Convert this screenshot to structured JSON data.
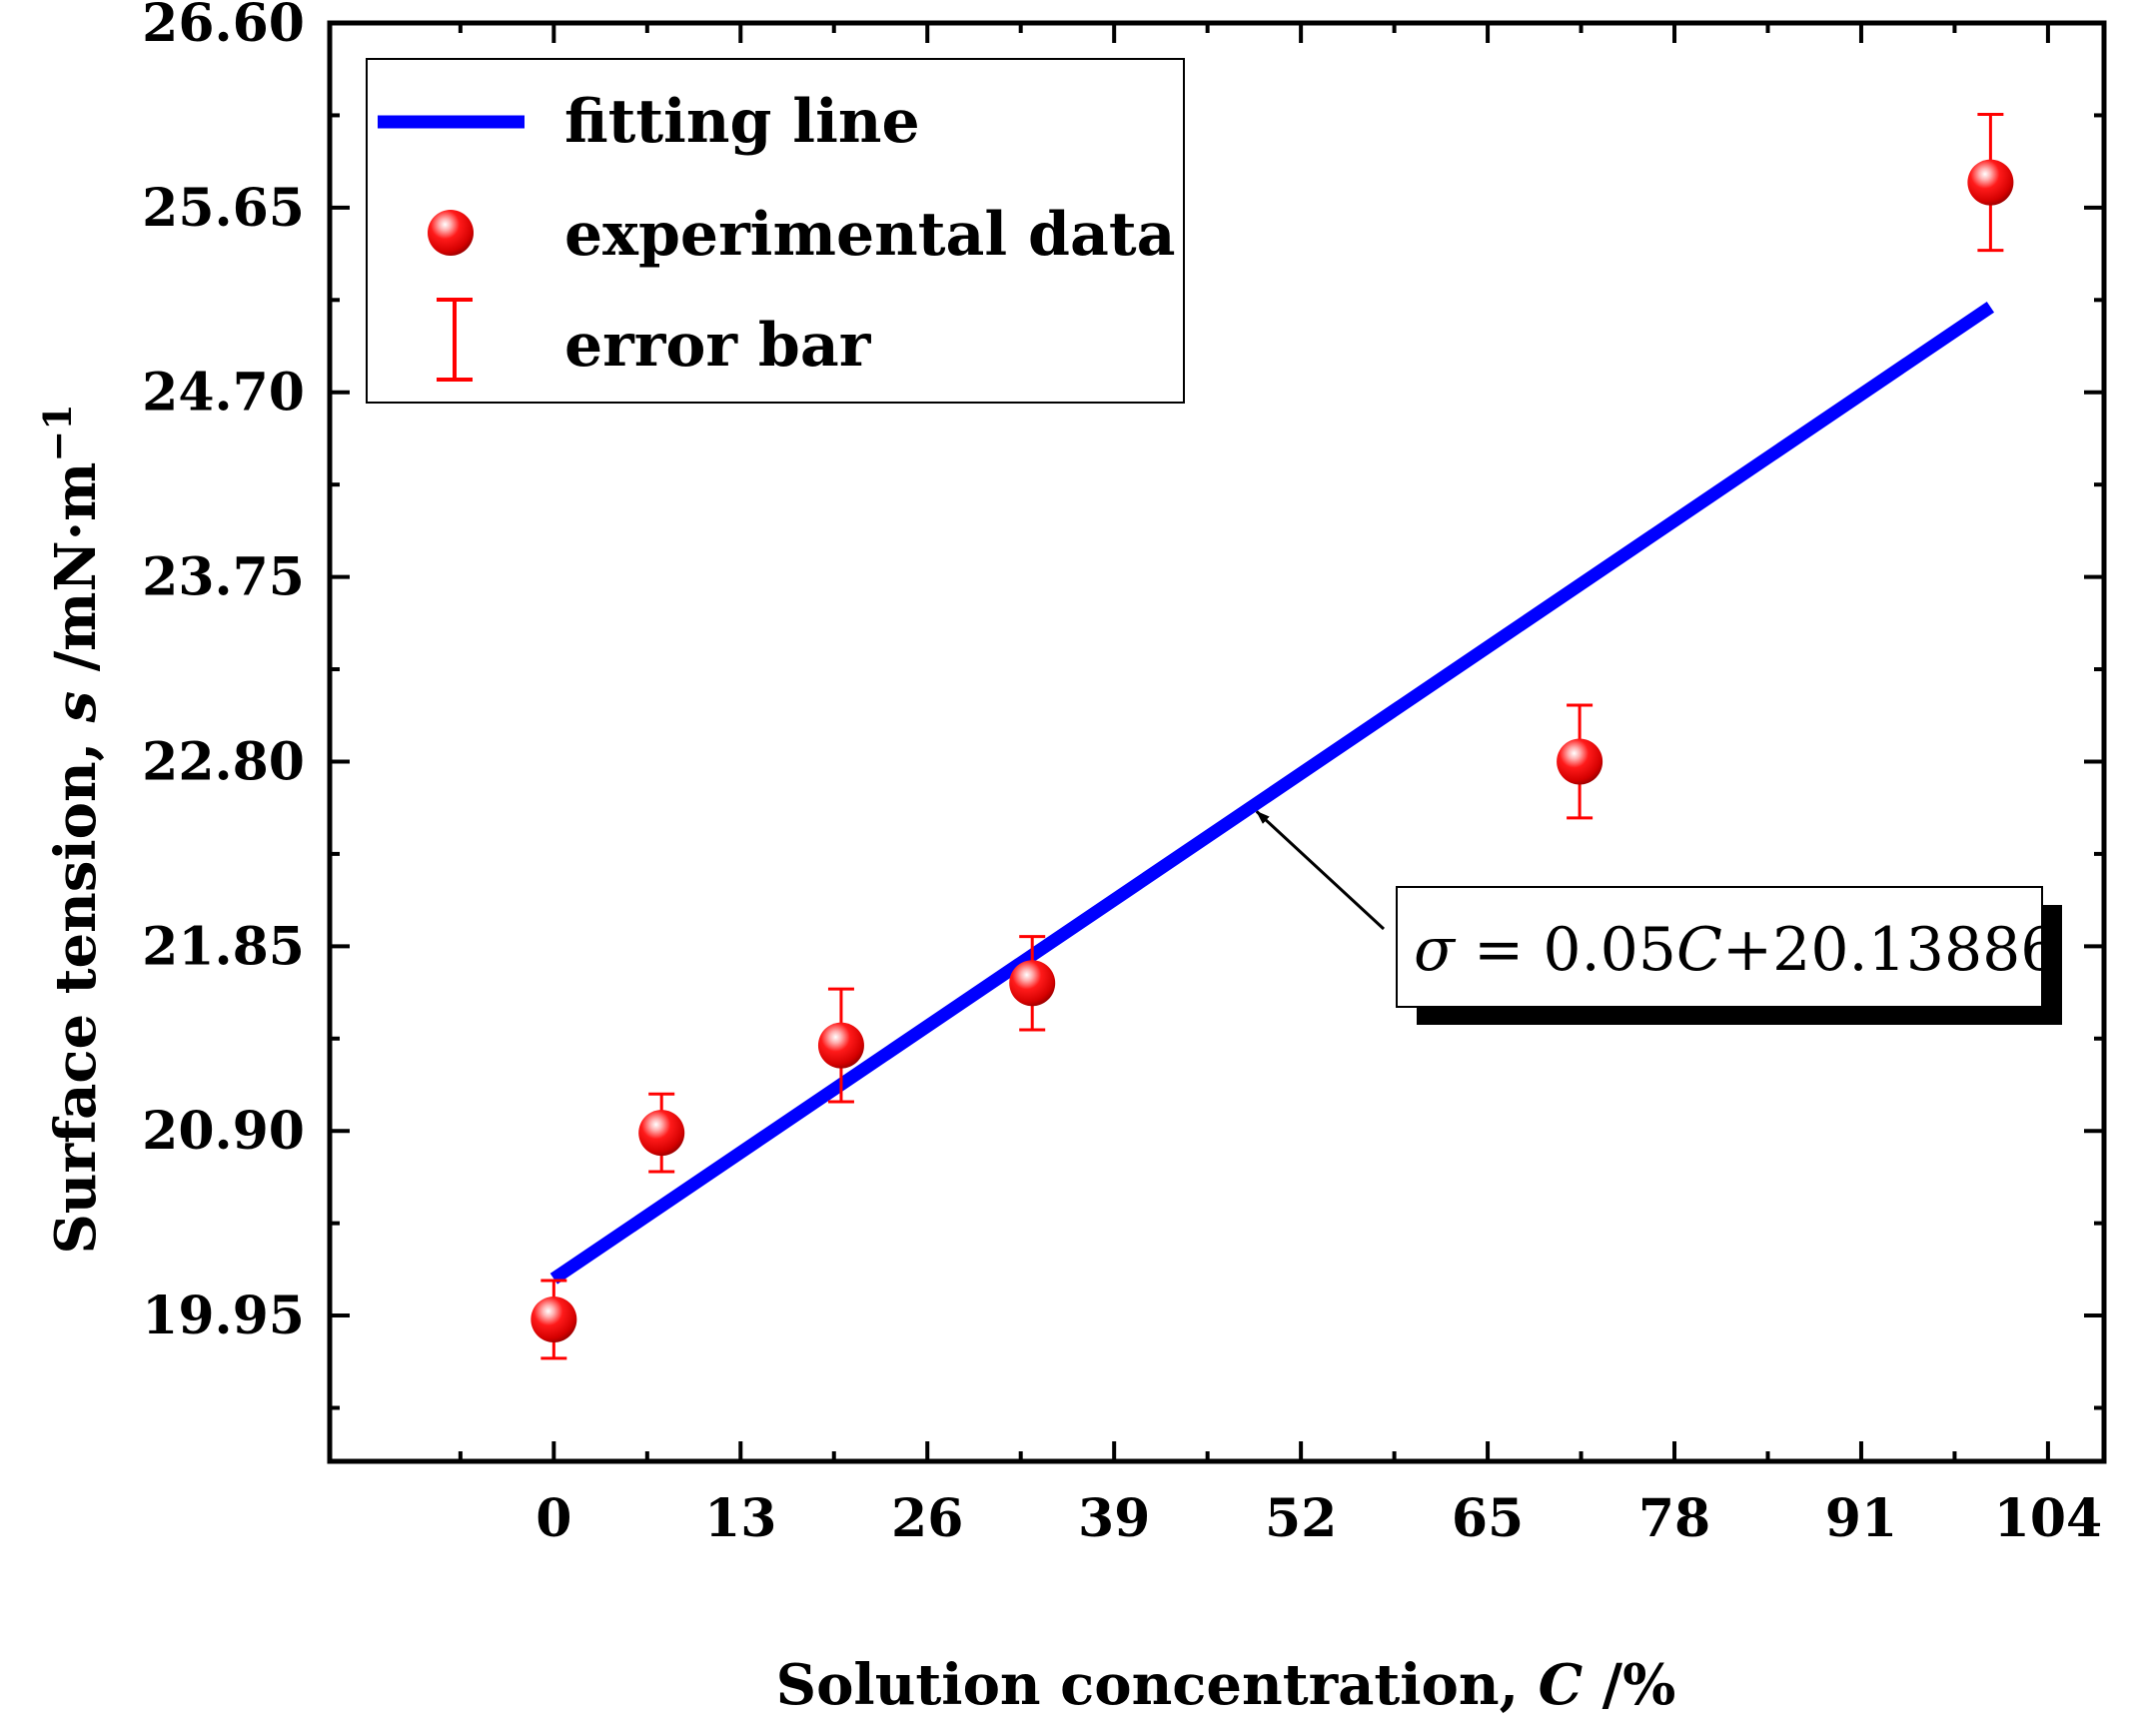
{
  "chart_data": {
    "type": "scatter",
    "xlabel_main": "Solution concentration, ",
    "xlabel_var": "C",
    "xlabel_unit": " /%",
    "ylabel_main": "Surface tension, ",
    "ylabel_var": "s",
    "ylabel_unit": " /mN·m",
    "ylabel_sup": "−1",
    "xlim": [
      -15.6,
      107.9
    ],
    "ylim": [
      19.2,
      26.6
    ],
    "x_ticks": [
      0,
      13,
      26,
      39,
      52,
      65,
      78,
      91,
      104
    ],
    "x_tick_labels": [
      "0",
      "13",
      "26",
      "39",
      "52",
      "65",
      "78",
      "91",
      "104"
    ],
    "y_ticks": [
      19.95,
      20.9,
      21.85,
      22.8,
      23.75,
      24.7,
      25.65,
      26.6
    ],
    "y_tick_labels": [
      "19.95",
      "20.90",
      "21.85",
      "22.80",
      "23.75",
      "24.70",
      "25.65",
      "26.60"
    ],
    "series": [
      {
        "name": "experimental data",
        "type": "scatter",
        "color": "#ff0000",
        "x": [
          0,
          7.5,
          20,
          33.3,
          71.4,
          100
        ],
        "y": [
          19.93,
          20.89,
          21.34,
          21.66,
          22.8,
          25.78
        ],
        "y_err": [
          0.2,
          0.2,
          0.29,
          0.24,
          0.29,
          0.35
        ]
      },
      {
        "name": "fitting line",
        "type": "line",
        "color": "#0000ff",
        "x": [
          0,
          100
        ],
        "y": [
          20.13886,
          25.13886
        ]
      }
    ],
    "legend": {
      "position": "top-left",
      "entries": [
        "fitting line",
        "experimental data",
        "error bar"
      ]
    },
    "annotation": {
      "sigma": "σ",
      "equals": " = ",
      "coef": "0.05",
      "var": "C",
      "rest": "+20.13886",
      "points_to_x": 48.5
    }
  }
}
